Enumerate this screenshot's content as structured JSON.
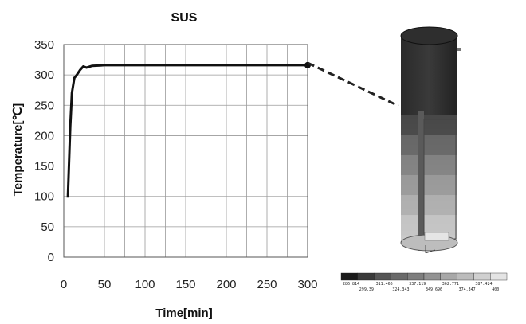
{
  "chart_data": {
    "type": "line",
    "title": "SUS",
    "xlabel": "Time[min]",
    "ylabel": "Temperature[℃]",
    "xlim": [
      0,
      300
    ],
    "ylim": [
      0,
      350
    ],
    "xticks": [
      0,
      50,
      100,
      150,
      200,
      250,
      300
    ],
    "yticks": [
      0,
      50,
      100,
      150,
      200,
      250,
      300,
      350
    ],
    "grid": true,
    "series": [
      {
        "color": "#111111",
        "x": [
          5,
          8,
          10,
          13,
          16,
          20,
          24,
          28,
          35,
          50,
          100,
          150,
          200,
          250,
          300
        ],
        "y": [
          98,
          215,
          270,
          295,
          300,
          308,
          314,
          312,
          315,
          316,
          316,
          316,
          316,
          316,
          316
        ]
      }
    ]
  },
  "colorbar": {
    "labels_top": [
      "286.814",
      "311.466",
      "337.119",
      "362.771",
      "387.424"
    ],
    "labels_bottom": [
      "299.39",
      "324.343",
      "349.696",
      "374.347",
      "400"
    ],
    "colors": [
      "#1a1a1a",
      "#3a3a3a",
      "#555555",
      "#6a6a6a",
      "#7e7e7e",
      "#939393",
      "#a8a8a8",
      "#bcbcbc",
      "#d0d0d0",
      "#e4e4e4"
    ]
  }
}
